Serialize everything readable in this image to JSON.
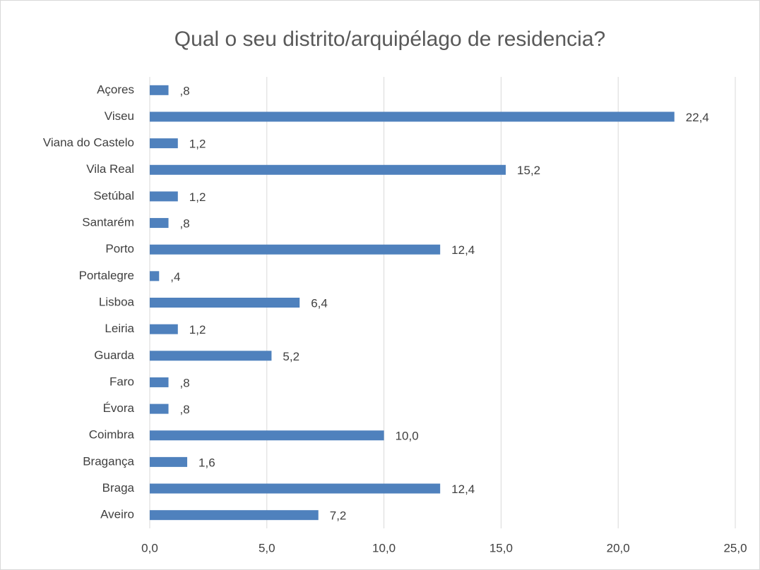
{
  "chart_data": {
    "type": "barh",
    "title": "Qual o seu distrito/arquipélago de residencia?",
    "categories": [
      "Açores",
      "Viseu",
      "Viana do Castelo",
      "Vila Real",
      "Setúbal",
      "Santarém",
      "Porto",
      "Portalegre",
      "Lisboa",
      "Leiria",
      "Guarda",
      "Faro",
      "Évora",
      "Coimbra",
      "Bragança",
      "Braga",
      "Aveiro"
    ],
    "values": [
      0.8,
      22.4,
      1.2,
      15.2,
      1.2,
      0.8,
      12.4,
      0.4,
      6.4,
      1.2,
      5.2,
      0.8,
      0.8,
      10.0,
      1.6,
      12.4,
      7.2
    ],
    "value_labels": [
      ",8",
      "22,4",
      "1,2",
      "15,2",
      "1,2",
      ",8",
      "12,4",
      ",4",
      "6,4",
      "1,2",
      "5,2",
      ",8",
      ",8",
      "10,0",
      "1,6",
      "12,4",
      "7,2"
    ],
    "color": "#4f81bd",
    "xlim": [
      0,
      25
    ],
    "xticks": [
      {
        "value": 0,
        "label": "0,0"
      },
      {
        "value": 5,
        "label": "5,0"
      },
      {
        "value": 10,
        "label": "10,0"
      },
      {
        "value": 15,
        "label": "15,0"
      },
      {
        "value": 20,
        "label": "20,0"
      },
      {
        "value": 25,
        "label": "25,0"
      }
    ],
    "grid": true
  }
}
